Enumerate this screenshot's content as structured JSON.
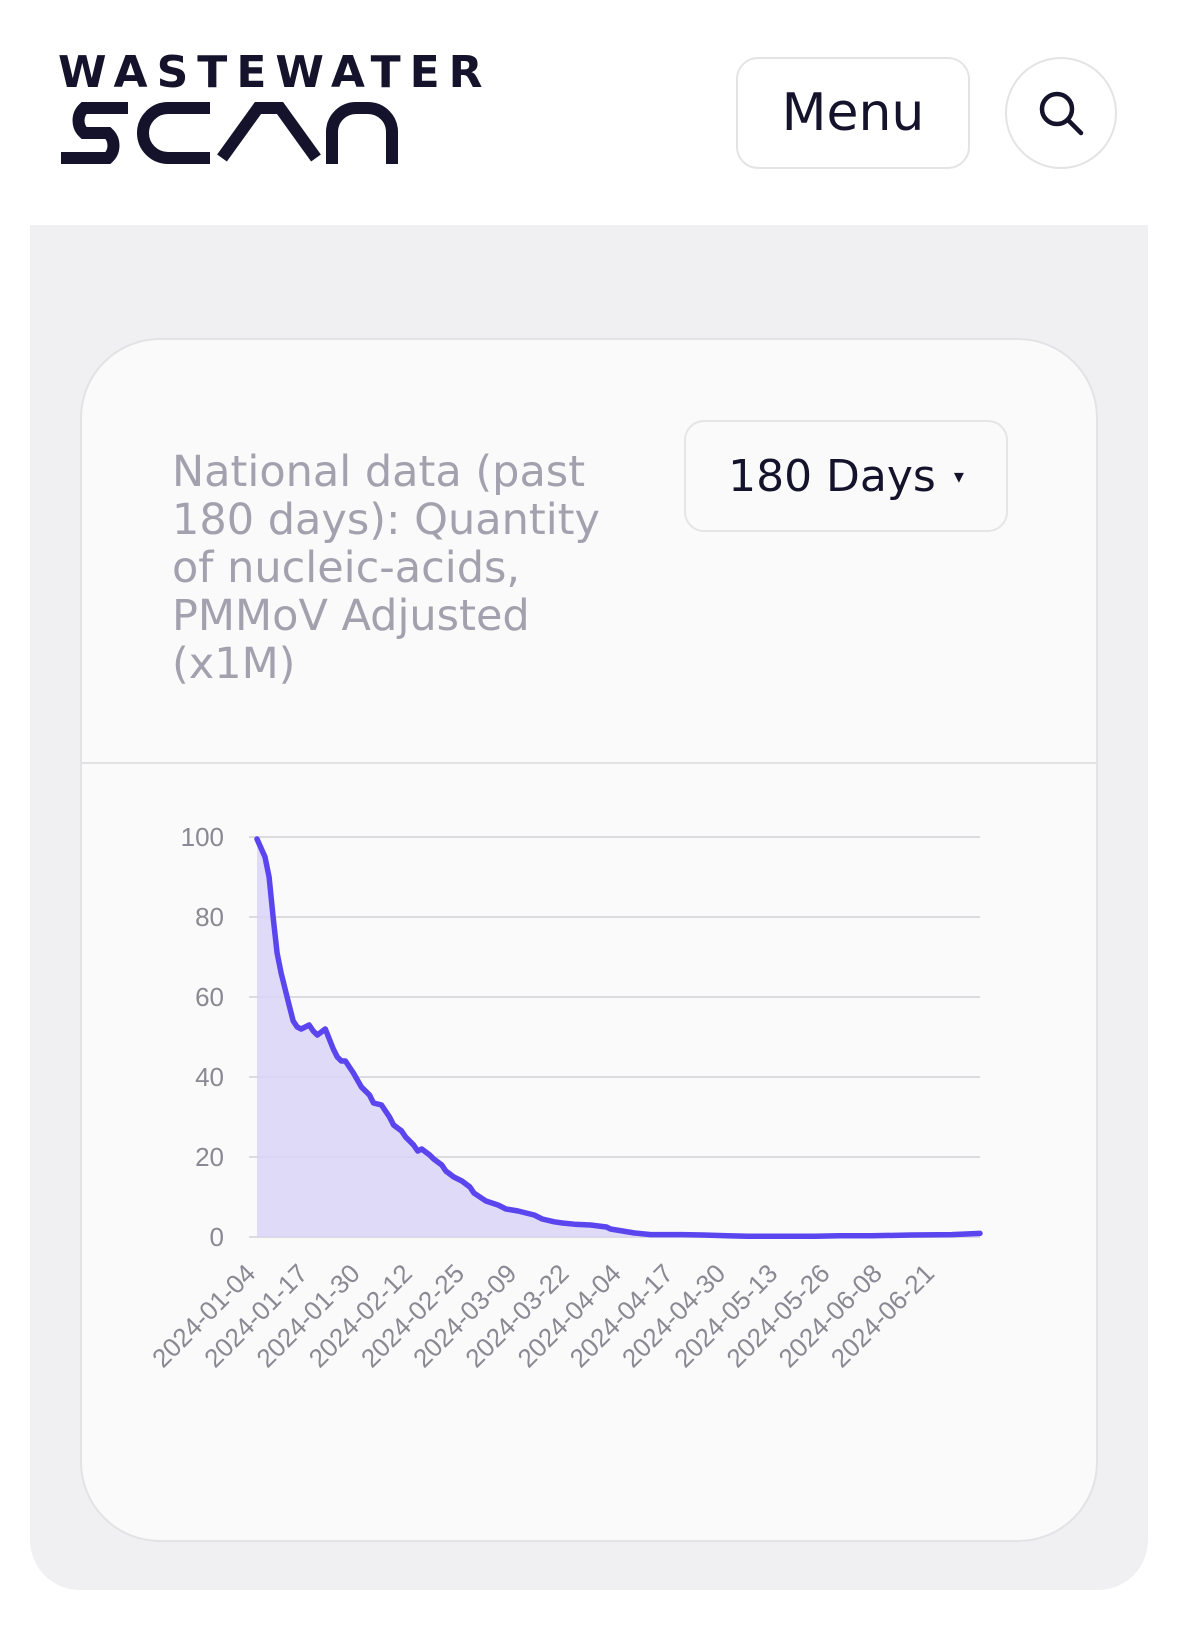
{
  "header": {
    "logo_top": "WASTEWATER",
    "logo_bottom": "SCAN",
    "menu_label": "Menu",
    "search_icon": "search-icon"
  },
  "card": {
    "title": "National data (past 180 days): Quantity of nucleic-acids, PMMoV Adjusted (x1M)",
    "range_select": "180 Days",
    "range_caret": "▾"
  },
  "colors": {
    "line": "#5b45ee",
    "fill": "#d9d3f7",
    "brand_text": "#14132b"
  },
  "chart_data": {
    "type": "area",
    "title": "",
    "xlabel": "",
    "ylabel": "",
    "ylim": [
      0,
      100
    ],
    "yticks": [
      0,
      20,
      40,
      60,
      80,
      100
    ],
    "grid": true,
    "xtick_labels": [
      "2024-01-04",
      "2024-01-17",
      "2024-01-30",
      "2024-02-12",
      "2024-02-25",
      "2024-03-09",
      "2024-03-22",
      "2024-04-04",
      "2024-04-17",
      "2024-04-30",
      "2024-05-13",
      "2024-05-26",
      "2024-06-08",
      "2024-06-21"
    ],
    "x_start": "2024-01-04",
    "x_end": "2024-07-02",
    "series": [
      {
        "name": "",
        "x": [
          "2024-01-04",
          "2024-01-06",
          "2024-01-07",
          "2024-01-08",
          "2024-01-09",
          "2024-01-10",
          "2024-01-11",
          "2024-01-12",
          "2024-01-13",
          "2024-01-14",
          "2024-01-15",
          "2024-01-17",
          "2024-01-18",
          "2024-01-19",
          "2024-01-21",
          "2024-01-22",
          "2024-01-23",
          "2024-01-24",
          "2024-01-25",
          "2024-01-26",
          "2024-01-28",
          "2024-01-30",
          "2024-02-01",
          "2024-02-02",
          "2024-02-04",
          "2024-02-06",
          "2024-02-07",
          "2024-02-09",
          "2024-02-10",
          "2024-02-12",
          "2024-02-13",
          "2024-02-14",
          "2024-02-16",
          "2024-02-17",
          "2024-02-19",
          "2024-02-20",
          "2024-02-22",
          "2024-02-24",
          "2024-02-26",
          "2024-02-27",
          "2024-03-01",
          "2024-03-04",
          "2024-03-06",
          "2024-03-09",
          "2024-03-11",
          "2024-03-13",
          "2024-03-15",
          "2024-03-18",
          "2024-03-20",
          "2024-03-23",
          "2024-03-27",
          "2024-03-31",
          "2024-04-01",
          "2024-04-04",
          "2024-04-07",
          "2024-04-11",
          "2024-04-15",
          "2024-04-19",
          "2024-04-24",
          "2024-04-30",
          "2024-05-05",
          "2024-05-10",
          "2024-05-16",
          "2024-05-22",
          "2024-05-28",
          "2024-06-05",
          "2024-06-15",
          "2024-06-25",
          "2024-07-02"
        ],
        "values": [
          99.5,
          95,
          90,
          80,
          71,
          66,
          62,
          58,
          54,
          52.5,
          52,
          53,
          51.5,
          50.5,
          52,
          49.5,
          47,
          45,
          44,
          44,
          41,
          37.5,
          35.5,
          33.5,
          33,
          30,
          28,
          26.5,
          25,
          23,
          21.5,
          22,
          20.5,
          19.5,
          18,
          16.5,
          15,
          14,
          12.5,
          11,
          9,
          8,
          7,
          6.5,
          6,
          5.5,
          4.5,
          3.8,
          3.5,
          3.2,
          3,
          2.5,
          2,
          1.5,
          1,
          0.6,
          0.6,
          0.6,
          0.5,
          0.3,
          0.2,
          0.2,
          0.2,
          0.2,
          0.3,
          0.3,
          0.5,
          0.6,
          0.9
        ]
      }
    ]
  }
}
